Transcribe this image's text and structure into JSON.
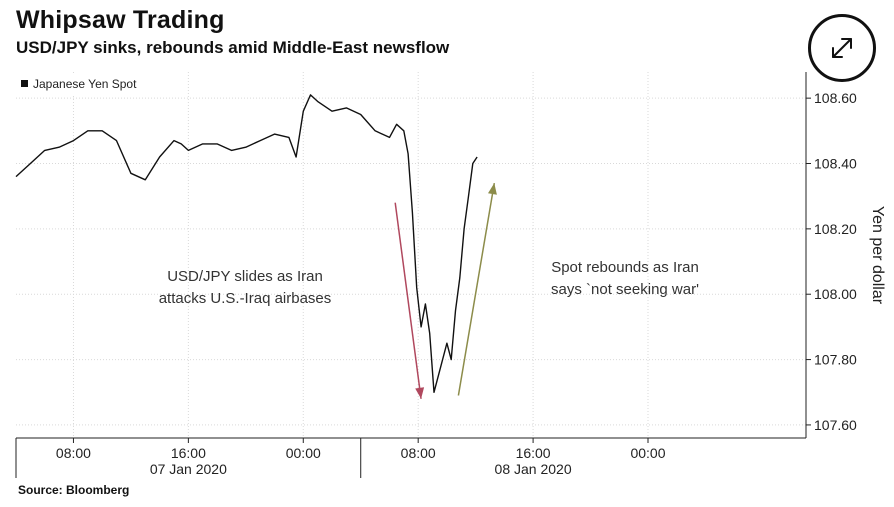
{
  "title": "Whipsaw Trading",
  "subtitle": "USD/JPY sinks, rebounds amid Middle-East newsflow",
  "source": "Source: Bloomberg",
  "expand_icon": "expand-arrows-icon",
  "chart_data": {
    "type": "line",
    "title": "Whipsaw Trading",
    "subtitle": "USD/JPY sinks, rebounds amid Middle-East newsflow",
    "ylabel": "Yen per dollar",
    "ylim": [
      107.56,
      108.68
    ],
    "y_ticks": [
      108.6,
      108.4,
      108.2,
      108.0,
      107.8,
      107.6
    ],
    "y_tick_labels": [
      "108.60",
      "108.40",
      "108.20",
      "108.00",
      "107.80",
      "107.60"
    ],
    "x_ticks": [
      "08:00",
      "16:00",
      "00:00",
      "08:00",
      "16:00",
      "00:00"
    ],
    "x_tick_hours": [
      8,
      16,
      24,
      32,
      40,
      48
    ],
    "x_date_labels": [
      {
        "label": "07 Jan 2020",
        "hour": 16
      },
      {
        "label": "08 Jan 2020",
        "hour": 40
      }
    ],
    "xlim_hours": [
      4,
      59
    ],
    "grid": true,
    "legend_position": "top-left",
    "series": [
      {
        "name": "Japanese Yen Spot",
        "color": "#111111",
        "x_hours": [
          4.0,
          5.0,
          6.0,
          7.0,
          8.0,
          9.0,
          10.0,
          11.0,
          12.0,
          13.0,
          14.0,
          15.0,
          15.5,
          16.0,
          17.0,
          18.0,
          19.0,
          20.0,
          21.0,
          22.0,
          23.0,
          23.5,
          24.0,
          24.5,
          25.0,
          26.0,
          27.0,
          28.0,
          29.0,
          30.0,
          30.5,
          31.0,
          31.3,
          31.6,
          31.9,
          32.2,
          32.5,
          32.8,
          33.1,
          33.4,
          33.7,
          34.0,
          34.3,
          34.6,
          34.9,
          35.2,
          35.5,
          35.8,
          36.1
        ],
        "values": [
          108.36,
          108.4,
          108.44,
          108.45,
          108.47,
          108.5,
          108.5,
          108.47,
          108.37,
          108.35,
          108.42,
          108.47,
          108.46,
          108.44,
          108.46,
          108.46,
          108.44,
          108.45,
          108.47,
          108.49,
          108.48,
          108.42,
          108.56,
          108.61,
          108.59,
          108.56,
          108.57,
          108.55,
          108.5,
          108.48,
          108.52,
          108.5,
          108.43,
          108.25,
          108.02,
          107.9,
          107.97,
          107.88,
          107.7,
          107.75,
          107.8,
          107.85,
          107.8,
          107.95,
          108.05,
          108.2,
          108.3,
          108.4,
          108.42
        ]
      }
    ],
    "annotations": [
      {
        "lines": [
          "USD/JPY slides as Iran",
          "attacks U.S.-Iraq airbases"
        ],
        "arrow_color": "#b0485e",
        "arrow_from": {
          "hour": 30.4,
          "value": 108.28
        },
        "arrow_to": {
          "hour": 32.2,
          "value": 107.68
        }
      },
      {
        "lines": [
          "Spot rebounds as Iran",
          "says `not seeking war'"
        ],
        "arrow_color": "#8c8c4a",
        "arrow_from": {
          "hour": 34.8,
          "value": 107.69
        },
        "arrow_to": {
          "hour": 37.3,
          "value": 108.34
        }
      }
    ]
  }
}
